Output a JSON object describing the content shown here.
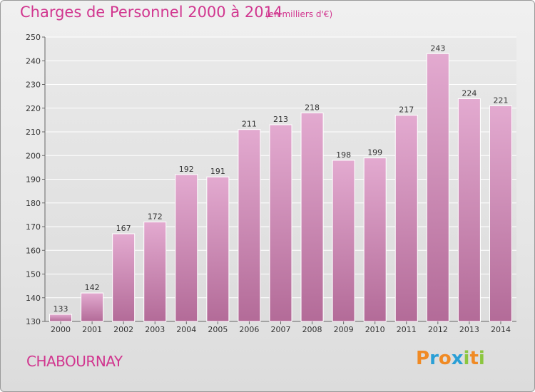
{
  "header": {
    "title": "Charges de Personnel 2000 à 2014",
    "subtitle": "(en milliers d'€)"
  },
  "footer": {
    "location": "CHABOURNAY",
    "brand_letters": [
      "P",
      "r",
      "o",
      "x",
      "i",
      "t",
      "i"
    ]
  },
  "colors": {
    "accent": "#d1368f",
    "bar_top": "#e3aad0",
    "bar_bottom": "#b36b98",
    "brand": [
      "#f08a24",
      "#2a9fd6",
      "#f08a24",
      "#2a9fd6",
      "#8cc63f",
      "#f08a24",
      "#8cc63f"
    ]
  },
  "chart_data": {
    "type": "bar",
    "categories": [
      "2000",
      "2001",
      "2002",
      "2003",
      "2004",
      "2005",
      "2006",
      "2007",
      "2008",
      "2009",
      "2010",
      "2011",
      "2012",
      "2013",
      "2014"
    ],
    "values": [
      133,
      142,
      167,
      172,
      192,
      191,
      211,
      213,
      218,
      198,
      199,
      217,
      243,
      224,
      221
    ],
    "ylim": [
      130,
      250
    ],
    "yticks": [
      130,
      140,
      150,
      160,
      170,
      180,
      190,
      200,
      210,
      220,
      230,
      240,
      250
    ],
    "grid": true
  }
}
